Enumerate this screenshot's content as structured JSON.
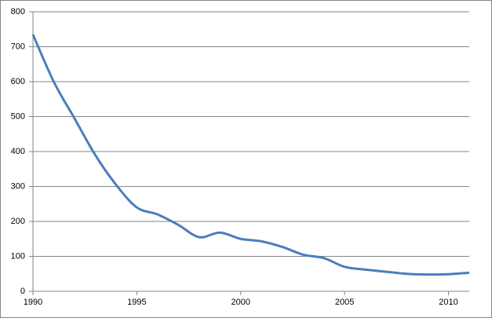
{
  "chart_data": {
    "type": "line",
    "x": [
      1990,
      1991,
      1992,
      1993,
      1994,
      1995,
      1996,
      1997,
      1998,
      1999,
      2000,
      2001,
      2002,
      2003,
      2004,
      2005,
      2006,
      2007,
      2008,
      2009,
      2010,
      2011
    ],
    "series": [
      {
        "color": "#4a7ebb",
        "values": [
          735,
          600,
          495,
          390,
          305,
          240,
          220,
          190,
          155,
          168,
          150,
          143,
          127,
          105,
          95,
          70,
          62,
          56,
          50,
          48,
          49,
          53
        ]
      }
    ],
    "xlim": [
      1990,
      2011
    ],
    "xticks": [
      1990,
      1995,
      2000,
      2005,
      2010
    ],
    "ylim": [
      0,
      800
    ],
    "yticks": [
      0,
      100,
      200,
      300,
      400,
      500,
      600,
      700,
      800
    ],
    "grid": true
  }
}
